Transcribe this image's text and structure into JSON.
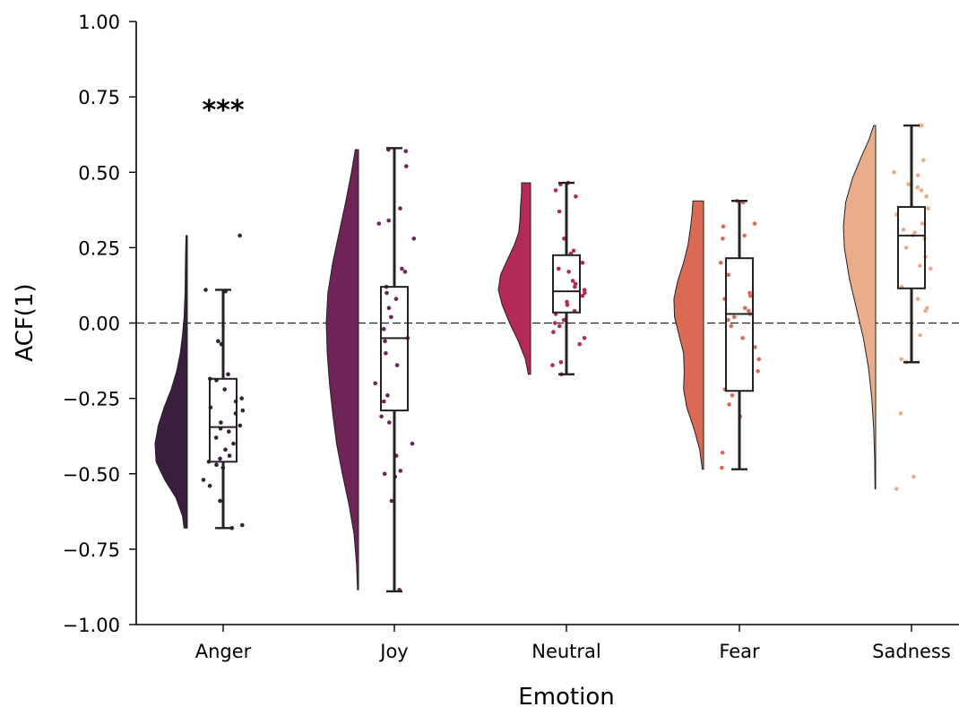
{
  "chart_data": {
    "type": "raincloud",
    "xlabel": "Emotion",
    "ylabel": "ACF(1)",
    "ylim": [
      -1.0,
      1.0
    ],
    "yticks": [
      "1.00",
      "0.75",
      "0.50",
      "0.25",
      "0.00",
      "−0.25",
      "−0.50",
      "−0.75",
      "−1.00"
    ],
    "ytick_values": [
      1.0,
      0.75,
      0.5,
      0.25,
      0.0,
      -0.25,
      -0.5,
      -0.75,
      -1.0
    ],
    "reference_line": {
      "y": 0.0,
      "style": "dashed"
    },
    "categories": [
      "Anger",
      "Joy",
      "Neutral",
      "Fear",
      "Sadness"
    ],
    "colors": [
      "#3b1e3f",
      "#6e2457",
      "#b3295a",
      "#db6a54",
      "#e9ad8c"
    ],
    "annotations": [
      {
        "category": "Anger",
        "y": 0.73,
        "text": "***"
      }
    ],
    "boxplots": [
      {
        "category": "Anger",
        "whisker_low": -0.68,
        "q1": -0.46,
        "median": -0.345,
        "q3": -0.185,
        "whisker_high": 0.11
      },
      {
        "category": "Joy",
        "whisker_low": -0.89,
        "q1": -0.29,
        "median": -0.05,
        "q3": 0.12,
        "whisker_high": 0.58
      },
      {
        "category": "Neutral",
        "whisker_low": -0.17,
        "q1": 0.035,
        "median": 0.105,
        "q3": 0.225,
        "whisker_high": 0.465
      },
      {
        "category": "Fear",
        "whisker_low": -0.485,
        "q1": -0.225,
        "median": 0.03,
        "q3": 0.215,
        "whisker_high": 0.405
      },
      {
        "category": "Sadness",
        "whisker_low": -0.13,
        "q1": 0.115,
        "median": 0.29,
        "q3": 0.385,
        "whisker_high": 0.655
      }
    ],
    "violins": [
      {
        "category": "Anger",
        "min": -0.68,
        "max": 0.29,
        "density": [
          [
            -0.68,
            0.1
          ],
          [
            -0.64,
            0.15
          ],
          [
            -0.58,
            0.35
          ],
          [
            -0.52,
            0.7
          ],
          [
            -0.46,
            0.97
          ],
          [
            -0.4,
            1.0
          ],
          [
            -0.34,
            0.9
          ],
          [
            -0.28,
            0.72
          ],
          [
            -0.22,
            0.5
          ],
          [
            -0.16,
            0.33
          ],
          [
            -0.1,
            0.22
          ],
          [
            -0.04,
            0.15
          ],
          [
            0.02,
            0.1
          ],
          [
            0.1,
            0.07
          ],
          [
            0.18,
            0.06
          ],
          [
            0.25,
            0.05
          ],
          [
            0.29,
            0.04
          ]
        ]
      },
      {
        "category": "Joy",
        "min": -0.885,
        "max": 0.575,
        "density": [
          [
            -0.885,
            0.03
          ],
          [
            -0.8,
            0.06
          ],
          [
            -0.7,
            0.14
          ],
          [
            -0.6,
            0.3
          ],
          [
            -0.5,
            0.5
          ],
          [
            -0.4,
            0.68
          ],
          [
            -0.3,
            0.8
          ],
          [
            -0.2,
            0.9
          ],
          [
            -0.1,
            0.97
          ],
          [
            0.0,
            1.0
          ],
          [
            0.1,
            0.95
          ],
          [
            0.2,
            0.8
          ],
          [
            0.3,
            0.6
          ],
          [
            0.4,
            0.4
          ],
          [
            0.5,
            0.22
          ],
          [
            0.575,
            0.1
          ]
        ]
      },
      {
        "category": "Neutral",
        "min": -0.17,
        "max": 0.465,
        "density": [
          [
            -0.17,
            0.07
          ],
          [
            -0.12,
            0.16
          ],
          [
            -0.06,
            0.38
          ],
          [
            0.0,
            0.65
          ],
          [
            0.06,
            0.88
          ],
          [
            0.11,
            1.0
          ],
          [
            0.16,
            0.93
          ],
          [
            0.21,
            0.72
          ],
          [
            0.26,
            0.5
          ],
          [
            0.3,
            0.37
          ],
          [
            0.34,
            0.33
          ],
          [
            0.39,
            0.31
          ],
          [
            0.43,
            0.28
          ],
          [
            0.465,
            0.28
          ]
        ]
      },
      {
        "category": "Fear",
        "min": -0.485,
        "max": 0.405,
        "density": [
          [
            -0.485,
            0.04
          ],
          [
            -0.42,
            0.12
          ],
          [
            -0.35,
            0.3
          ],
          [
            -0.28,
            0.52
          ],
          [
            -0.22,
            0.62
          ],
          [
            -0.16,
            0.6
          ],
          [
            -0.1,
            0.62
          ],
          [
            -0.04,
            0.76
          ],
          [
            0.02,
            0.9
          ],
          [
            0.08,
            0.92
          ],
          [
            0.14,
            0.8
          ],
          [
            0.2,
            0.62
          ],
          [
            0.26,
            0.48
          ],
          [
            0.32,
            0.4
          ],
          [
            0.37,
            0.35
          ],
          [
            0.405,
            0.33
          ]
        ]
      },
      {
        "category": "Sadness",
        "min": -0.55,
        "max": 0.655,
        "density": [
          [
            -0.55,
            0.02
          ],
          [
            -0.45,
            0.03
          ],
          [
            -0.35,
            0.06
          ],
          [
            -0.25,
            0.12
          ],
          [
            -0.15,
            0.22
          ],
          [
            -0.05,
            0.38
          ],
          [
            0.05,
            0.6
          ],
          [
            0.15,
            0.82
          ],
          [
            0.25,
            0.97
          ],
          [
            0.32,
            1.0
          ],
          [
            0.4,
            0.93
          ],
          [
            0.48,
            0.72
          ],
          [
            0.55,
            0.45
          ],
          [
            0.61,
            0.2
          ],
          [
            0.655,
            0.06
          ]
        ]
      }
    ],
    "points": [
      {
        "category": "Anger",
        "values": [
          0.29,
          0.11,
          0.105,
          -0.06,
          -0.07,
          -0.17,
          -0.185,
          -0.19,
          -0.22,
          -0.25,
          -0.26,
          -0.28,
          -0.29,
          -0.3,
          -0.33,
          -0.34,
          -0.35,
          -0.36,
          -0.38,
          -0.4,
          -0.42,
          -0.44,
          -0.45,
          -0.46,
          -0.47,
          -0.48,
          -0.52,
          -0.54,
          -0.59,
          -0.67,
          -0.68
        ]
      },
      {
        "category": "Joy",
        "values": [
          0.575,
          0.57,
          0.52,
          0.38,
          0.34,
          0.33,
          0.28,
          0.18,
          0.17,
          0.12,
          0.1,
          0.08,
          0.05,
          0.02,
          -0.02,
          -0.05,
          -0.06,
          -0.1,
          -0.14,
          -0.2,
          -0.24,
          -0.26,
          -0.31,
          -0.33,
          -0.4,
          -0.44,
          -0.49,
          -0.5,
          -0.51,
          -0.59,
          -0.885
        ]
      },
      {
        "category": "Neutral",
        "values": [
          0.465,
          0.46,
          0.44,
          0.42,
          0.37,
          0.28,
          0.24,
          0.23,
          0.2,
          0.18,
          0.17,
          0.14,
          0.13,
          0.12,
          0.11,
          0.1,
          0.09,
          0.07,
          0.06,
          0.04,
          0.03,
          0.01,
          0.0,
          -0.01,
          -0.03,
          -0.05,
          -0.07,
          -0.13,
          -0.14,
          -0.17
        ]
      },
      {
        "category": "Fear",
        "values": [
          0.405,
          0.4,
          0.33,
          0.32,
          0.29,
          0.28,
          0.2,
          0.16,
          0.1,
          0.09,
          0.08,
          0.05,
          0.04,
          0.03,
          0.02,
          0.01,
          -0.01,
          -0.05,
          -0.08,
          -0.12,
          -0.16,
          -0.22,
          -0.24,
          -0.27,
          -0.31,
          -0.43,
          -0.48
        ]
      },
      {
        "category": "Sadness",
        "values": [
          0.655,
          0.655,
          0.54,
          0.5,
          0.49,
          0.46,
          0.45,
          0.44,
          0.42,
          0.38,
          0.36,
          0.33,
          0.31,
          0.3,
          0.29,
          0.28,
          0.25,
          0.22,
          0.19,
          0.18,
          0.12,
          0.08,
          0.05,
          0.04,
          -0.04,
          -0.12,
          -0.13,
          -0.3,
          -0.51,
          -0.55
        ]
      }
    ]
  }
}
